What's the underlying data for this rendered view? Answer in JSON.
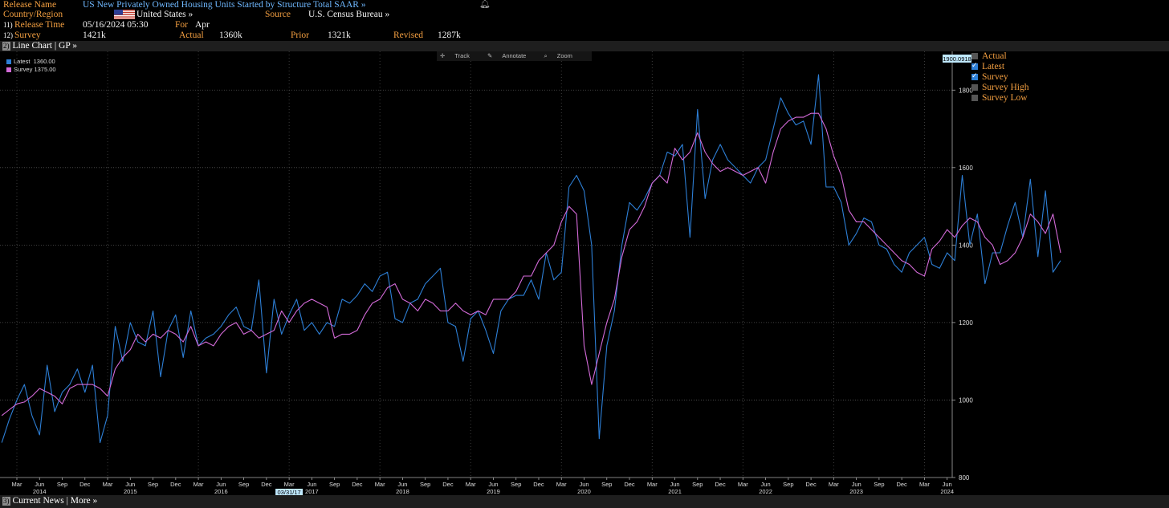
{
  "header": {
    "release_name_label": "Release Name",
    "release_name": "US New Privately Owned Housing Units Started by Structure Total SAAR »",
    "country_label": "Country/Region",
    "country": "United States »",
    "source_label": "Source",
    "source": "U.S. Census Bureau »",
    "release_time_num": "11)",
    "release_time_label": "Release Time",
    "release_time": "05/16/2024 05:30",
    "for_label": "For",
    "for_value": "Apr",
    "survey_num": "12)",
    "survey_label": "Survey",
    "survey_value": "1421k",
    "actual_label": "Actual",
    "actual_value": "1360k",
    "prior_label": "Prior",
    "prior_value": "1321k",
    "revised_label": "Revised",
    "revised_value": "1287k"
  },
  "chart_bar": {
    "num": "2)",
    "label": "Line Chart | GP »"
  },
  "toolbar": {
    "track": "Track",
    "annotate": "Annotate",
    "zoom": "Zoom"
  },
  "legend_top_left": [
    {
      "label": "Latest",
      "value": "1360.00",
      "color": "#2d7fd6"
    },
    {
      "label": "Survey",
      "value": "1375.00",
      "color": "#d36ad8"
    }
  ],
  "legend_right": [
    {
      "label": "Actual",
      "checked": false
    },
    {
      "label": "Latest",
      "checked": true
    },
    {
      "label": "Survey",
      "checked": true
    },
    {
      "label": "Survey High",
      "checked": false
    },
    {
      "label": "Survey Low",
      "checked": false
    }
  ],
  "y_marker_value": "1900.0918",
  "date_marker": "03/31/17",
  "bottom_bar": {
    "num": "3)",
    "label": "Current News | More »"
  },
  "colors": {
    "latest": "#2d7fd6",
    "survey": "#d36ad8",
    "header_orange": "#f39f41",
    "title_blue": "#6fb8ff"
  },
  "chart_data": {
    "type": "line",
    "ylim": [
      800,
      1900
    ],
    "yticks": [
      800,
      1000,
      1200,
      1400,
      1600,
      1800
    ],
    "start": "2014-01",
    "grid": true,
    "x_tick_labels": [
      "Mar",
      "Jun",
      "Sep",
      "Dec",
      "Mar",
      "Jun",
      "Sep",
      "Dec",
      "Mar",
      "Jun",
      "Sep",
      "Dec",
      "Mar",
      "Jun",
      "Sep",
      "Dec",
      "Mar",
      "Jun",
      "Sep",
      "Dec",
      "Mar",
      "Jun",
      "Sep",
      "Dec",
      "Mar",
      "Jun",
      "Sep",
      "Dec",
      "Mar",
      "Jun",
      "Sep",
      "Dec",
      "Mar",
      "Jun",
      "Sep",
      "Dec",
      "Mar",
      "Jun",
      "Sep",
      "Dec",
      "Mar",
      "Jun"
    ],
    "year_labels": [
      "2014",
      "2015",
      "2016",
      "2017",
      "2018",
      "2019",
      "2020",
      "2021",
      "2022",
      "2023",
      "2024"
    ],
    "series": [
      {
        "name": "Latest",
        "color": "#2d7fd6",
        "values": [
          890,
          950,
          1000,
          1040,
          960,
          910,
          1090,
          970,
          1020,
          1040,
          1080,
          1020,
          1090,
          890,
          960,
          1190,
          1100,
          1200,
          1150,
          1140,
          1230,
          1060,
          1180,
          1220,
          1110,
          1230,
          1140,
          1160,
          1170,
          1190,
          1220,
          1240,
          1190,
          1180,
          1310,
          1070,
          1260,
          1170,
          1220,
          1260,
          1180,
          1200,
          1170,
          1200,
          1190,
          1260,
          1250,
          1270,
          1300,
          1280,
          1320,
          1330,
          1210,
          1200,
          1250,
          1260,
          1300,
          1320,
          1340,
          1200,
          1190,
          1100,
          1210,
          1230,
          1180,
          1120,
          1230,
          1260,
          1270,
          1270,
          1310,
          1260,
          1380,
          1310,
          1330,
          1550,
          1580,
          1540,
          1400,
          900,
          1140,
          1230,
          1400,
          1510,
          1490,
          1520,
          1560,
          1580,
          1640,
          1630,
          1660,
          1420,
          1750,
          1520,
          1620,
          1660,
          1620,
          1600,
          1580,
          1560,
          1600,
          1620,
          1700,
          1780,
          1740,
          1710,
          1720,
          1660,
          1840,
          1550,
          1550,
          1510,
          1400,
          1430,
          1470,
          1460,
          1400,
          1390,
          1350,
          1330,
          1380,
          1400,
          1420,
          1350,
          1340,
          1380,
          1360,
          1580,
          1400,
          1480,
          1300,
          1380,
          1380,
          1450,
          1510,
          1420,
          1570,
          1370,
          1540,
          1330,
          1360
        ]
      },
      {
        "name": "Survey",
        "color": "#d36ad8",
        "values": [
          960,
          975,
          990,
          995,
          1010,
          1030,
          1020,
          1010,
          990,
          1030,
          1040,
          1040,
          1040,
          1030,
          1010,
          1080,
          1110,
          1130,
          1170,
          1150,
          1170,
          1160,
          1180,
          1170,
          1150,
          1190,
          1140,
          1150,
          1140,
          1170,
          1190,
          1200,
          1170,
          1180,
          1160,
          1170,
          1180,
          1230,
          1200,
          1230,
          1250,
          1260,
          1250,
          1240,
          1160,
          1170,
          1170,
          1180,
          1220,
          1250,
          1260,
          1290,
          1300,
          1260,
          1250,
          1230,
          1260,
          1250,
          1230,
          1230,
          1250,
          1230,
          1220,
          1230,
          1220,
          1260,
          1260,
          1260,
          1280,
          1320,
          1320,
          1360,
          1380,
          1400,
          1460,
          1500,
          1480,
          1140,
          1040,
          1120,
          1200,
          1260,
          1370,
          1440,
          1460,
          1500,
          1560,
          1580,
          1560,
          1650,
          1620,
          1640,
          1690,
          1640,
          1610,
          1590,
          1600,
          1590,
          1580,
          1590,
          1600,
          1560,
          1640,
          1700,
          1720,
          1730,
          1730,
          1740,
          1740,
          1700,
          1630,
          1580,
          1490,
          1460,
          1460,
          1440,
          1420,
          1400,
          1380,
          1360,
          1350,
          1330,
          1320,
          1390,
          1410,
          1440,
          1420,
          1450,
          1470,
          1460,
          1420,
          1400,
          1350,
          1360,
          1380,
          1420,
          1480,
          1460,
          1430,
          1480,
          1380
        ]
      }
    ]
  }
}
